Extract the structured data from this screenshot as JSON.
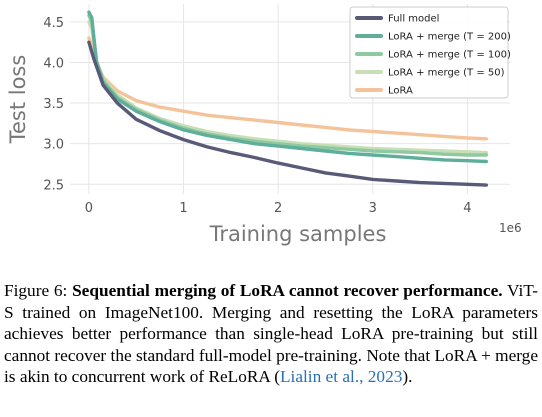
{
  "chart_data": {
    "type": "line",
    "xlabel": "Training samples",
    "ylabel": "Test loss",
    "x_offset_label": "1e6",
    "xlim": [
      -0.2,
      4.45
    ],
    "ylim": [
      2.38,
      4.72
    ],
    "x_ticks": [
      0,
      1,
      2,
      3,
      4
    ],
    "x_tick_labels": [
      "0",
      "1",
      "2",
      "3",
      "4"
    ],
    "y_ticks": [
      2.5,
      3.0,
      3.5,
      4.0,
      4.5
    ],
    "y_tick_labels": [
      "2.5",
      "3.0",
      "3.5",
      "4.0",
      "4.5"
    ],
    "grid": true,
    "legend_position": "top-right",
    "series": [
      {
        "name": "Full model",
        "color": "#585a78",
        "x": [
          0,
          0.05,
          0.15,
          0.3,
          0.5,
          0.75,
          1.0,
          1.25,
          1.5,
          1.75,
          2.0,
          2.25,
          2.5,
          2.75,
          3.0,
          3.25,
          3.5,
          3.75,
          4.0,
          4.2
        ],
        "y": [
          4.25,
          4.05,
          3.72,
          3.5,
          3.3,
          3.16,
          3.05,
          2.96,
          2.89,
          2.83,
          2.76,
          2.7,
          2.64,
          2.6,
          2.56,
          2.54,
          2.52,
          2.51,
          2.5,
          2.49
        ]
      },
      {
        "name": "LoRA + merge (T = 200)",
        "color": "#5fae9c",
        "x": [
          0,
          0.03,
          0.08,
          0.15,
          0.3,
          0.5,
          0.75,
          1.0,
          1.25,
          1.5,
          1.75,
          2.0,
          2.25,
          2.5,
          2.75,
          3.0,
          3.25,
          3.5,
          3.75,
          4.0,
          4.2
        ],
        "y": [
          4.62,
          4.55,
          4.0,
          3.75,
          3.55,
          3.4,
          3.27,
          3.17,
          3.1,
          3.05,
          3.0,
          2.97,
          2.94,
          2.91,
          2.88,
          2.86,
          2.84,
          2.82,
          2.8,
          2.79,
          2.78
        ]
      },
      {
        "name": "LoRA + merge (T = 100)",
        "color": "#8fc9a2",
        "x": [
          0,
          0.03,
          0.08,
          0.15,
          0.3,
          0.5,
          0.75,
          1.0,
          1.25,
          1.5,
          1.75,
          2.0,
          2.25,
          2.5,
          2.75,
          3.0,
          3.25,
          3.5,
          3.75,
          4.0,
          4.2
        ],
        "y": [
          4.58,
          4.5,
          4.02,
          3.78,
          3.57,
          3.42,
          3.29,
          3.19,
          3.12,
          3.07,
          3.03,
          3.0,
          2.97,
          2.95,
          2.93,
          2.91,
          2.9,
          2.89,
          2.87,
          2.86,
          2.86
        ]
      },
      {
        "name": "LoRA + merge (T = 50)",
        "color": "#c8dfb5",
        "x": [
          0,
          0.03,
          0.08,
          0.15,
          0.3,
          0.5,
          0.75,
          1.0,
          1.25,
          1.5,
          1.75,
          2.0,
          2.25,
          2.5,
          2.75,
          3.0,
          3.25,
          3.5,
          3.75,
          4.0,
          4.2
        ],
        "y": [
          4.5,
          4.42,
          4.02,
          3.8,
          3.6,
          3.44,
          3.31,
          3.22,
          3.15,
          3.1,
          3.06,
          3.03,
          3.0,
          2.98,
          2.96,
          2.94,
          2.93,
          2.92,
          2.91,
          2.9,
          2.89
        ]
      },
      {
        "name": "LoRA",
        "color": "#f5c39a",
        "x": [
          0,
          0.03,
          0.08,
          0.15,
          0.3,
          0.5,
          0.75,
          1.0,
          1.25,
          1.5,
          1.75,
          2.0,
          2.25,
          2.5,
          2.75,
          3.0,
          3.25,
          3.5,
          3.75,
          4.0,
          4.2
        ],
        "y": [
          4.3,
          4.2,
          4.0,
          3.82,
          3.65,
          3.53,
          3.45,
          3.4,
          3.35,
          3.32,
          3.29,
          3.26,
          3.23,
          3.2,
          3.17,
          3.15,
          3.13,
          3.11,
          3.09,
          3.07,
          3.06
        ]
      }
    ]
  },
  "caption": {
    "label": "Figure 6:",
    "bold_text": "Sequential merging of LoRA cannot recover performance.",
    "text": "ViT-S trained on ImageNet100. Merging and resetting the LoRA parameters achieves better performance than single-head LoRA pre-training but still cannot recover the standard full-model pre-training. Note that LoRA + merge is akin to concurrent work of ReLoRA (",
    "citation": "Lialin et al., 2023",
    "text_end": ")."
  }
}
